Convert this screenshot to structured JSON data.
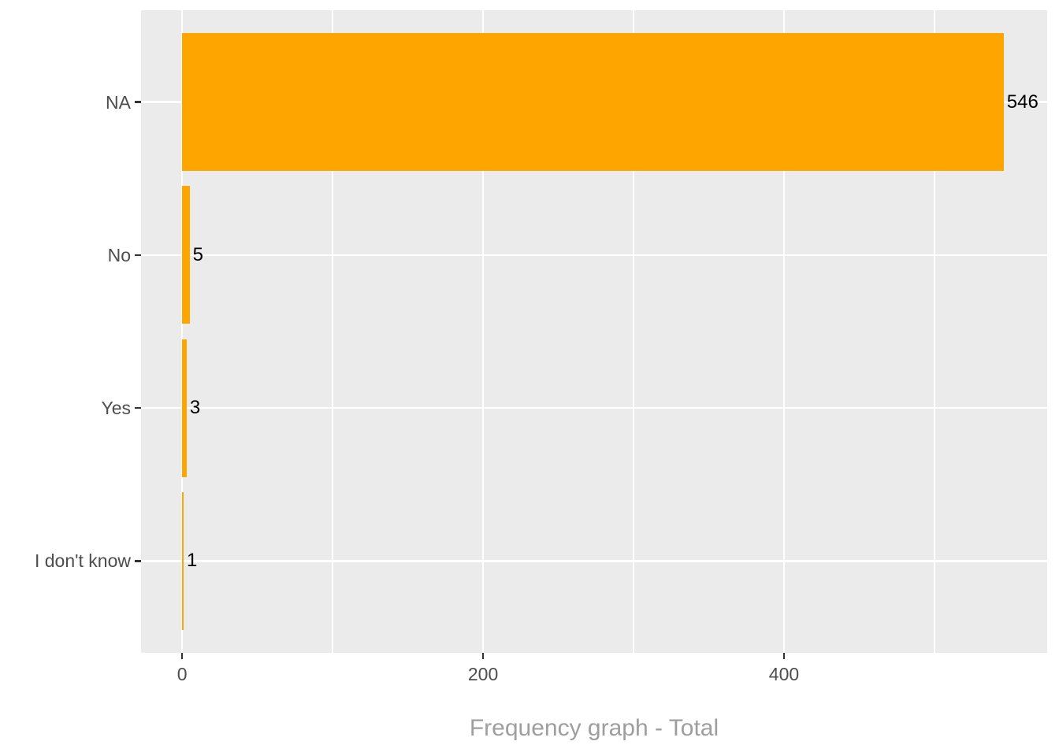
{
  "chart_data": {
    "type": "bar",
    "orientation": "horizontal",
    "title": "",
    "xlabel": "Frequency graph - Total",
    "ylabel": "",
    "categories": [
      "NA",
      "No",
      "Yes",
      "I don't know"
    ],
    "values": [
      546,
      5,
      3,
      1
    ],
    "bar_labels": [
      "546",
      "5",
      "3",
      "1"
    ],
    "x_major_ticks": [
      0,
      200,
      400
    ],
    "x_major_tick_labels": [
      "0",
      "200",
      "400"
    ],
    "x_minor_ticks": [
      100,
      300,
      500
    ],
    "xlim": [
      -27.3,
      574.9
    ],
    "grid": "white major and minor vertical gridlines, white major horizontal gridlines on grey panel",
    "legend_position": "none",
    "colors": {
      "bar": "#FFA500",
      "panel_background": "#EBEBEB",
      "gridline": "#FFFFFF",
      "axis_text": "#4D4D4D",
      "tick_mark": "#333333",
      "bar_label": "#000000",
      "axis_title": "#9E9E9E",
      "figure_background": "#FFFFFF"
    }
  }
}
